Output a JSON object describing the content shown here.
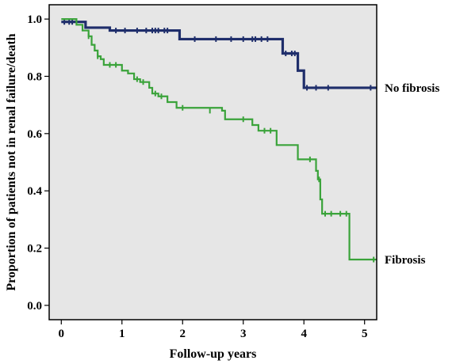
{
  "chart_data": {
    "type": "line",
    "subtype": "kaplan-meier step",
    "title": "",
    "xlabel": "Follow-up years",
    "ylabel": "Proportion of patients not in renal failure/death",
    "xlim": [
      -0.2,
      5.2
    ],
    "ylim": [
      -0.05,
      1.05
    ],
    "xticks": [
      0,
      1,
      2,
      3,
      4,
      5
    ],
    "yticks": [
      0.0,
      0.2,
      0.4,
      0.6,
      0.8,
      1.0
    ],
    "ytick_labels": [
      "0.0",
      "0.2",
      "0.4",
      "0.6",
      "0.8",
      "1.0"
    ],
    "background": "#e6e6e6",
    "grid": false,
    "series": [
      {
        "name": "No fibrosis",
        "color": "#1f2e6b",
        "steps": [
          [
            0,
            0.99
          ],
          [
            0.3,
            0.99
          ],
          [
            0.4,
            0.97
          ],
          [
            0.8,
            0.96
          ],
          [
            1.95,
            0.93
          ],
          [
            3.65,
            0.88
          ],
          [
            3.9,
            0.82
          ],
          [
            4.0,
            0.76
          ],
          [
            5.2,
            0.76
          ]
        ],
        "censored": [
          [
            0.05,
            0.99
          ],
          [
            0.13,
            0.99
          ],
          [
            0.18,
            0.99
          ],
          [
            0.9,
            0.96
          ],
          [
            1.05,
            0.96
          ],
          [
            1.25,
            0.96
          ],
          [
            1.4,
            0.96
          ],
          [
            1.5,
            0.96
          ],
          [
            1.55,
            0.96
          ],
          [
            1.6,
            0.96
          ],
          [
            1.7,
            0.96
          ],
          [
            1.75,
            0.96
          ],
          [
            2.2,
            0.93
          ],
          [
            2.55,
            0.93
          ],
          [
            2.8,
            0.93
          ],
          [
            3.0,
            0.93
          ],
          [
            3.15,
            0.93
          ],
          [
            3.2,
            0.93
          ],
          [
            3.3,
            0.93
          ],
          [
            3.4,
            0.93
          ],
          [
            3.7,
            0.88
          ],
          [
            3.8,
            0.88
          ],
          [
            3.85,
            0.88
          ],
          [
            4.05,
            0.76
          ],
          [
            4.2,
            0.76
          ],
          [
            4.4,
            0.76
          ],
          [
            5.1,
            0.76
          ]
        ]
      },
      {
        "name": "Fibrosis",
        "color": "#3aa33a",
        "steps": [
          [
            0,
            1.0
          ],
          [
            0.25,
            0.98
          ],
          [
            0.35,
            0.96
          ],
          [
            0.45,
            0.94
          ],
          [
            0.5,
            0.91
          ],
          [
            0.55,
            0.89
          ],
          [
            0.6,
            0.87
          ],
          [
            0.65,
            0.86
          ],
          [
            0.7,
            0.84
          ],
          [
            1.0,
            0.82
          ],
          [
            1.1,
            0.81
          ],
          [
            1.2,
            0.79
          ],
          [
            1.3,
            0.78
          ],
          [
            1.45,
            0.76
          ],
          [
            1.5,
            0.74
          ],
          [
            1.6,
            0.73
          ],
          [
            1.75,
            0.71
          ],
          [
            1.9,
            0.69
          ],
          [
            2.65,
            0.68
          ],
          [
            2.7,
            0.65
          ],
          [
            3.15,
            0.63
          ],
          [
            3.25,
            0.61
          ],
          [
            3.55,
            0.56
          ],
          [
            3.9,
            0.51
          ],
          [
            4.2,
            0.47
          ],
          [
            4.23,
            0.44
          ],
          [
            4.27,
            0.37
          ],
          [
            4.3,
            0.32
          ],
          [
            4.75,
            0.16
          ],
          [
            5.2,
            0.16
          ]
        ],
        "censored": [
          [
            0.45,
            0.94
          ],
          [
            0.6,
            0.87
          ],
          [
            0.8,
            0.84
          ],
          [
            0.9,
            0.84
          ],
          [
            1.25,
            0.79
          ],
          [
            1.35,
            0.78
          ],
          [
            1.55,
            0.74
          ],
          [
            1.65,
            0.73
          ],
          [
            2.0,
            0.69
          ],
          [
            2.45,
            0.68
          ],
          [
            3.0,
            0.65
          ],
          [
            3.35,
            0.61
          ],
          [
            3.45,
            0.61
          ],
          [
            4.1,
            0.51
          ],
          [
            4.25,
            0.44
          ],
          [
            4.35,
            0.32
          ],
          [
            4.45,
            0.32
          ],
          [
            4.6,
            0.32
          ],
          [
            4.7,
            0.32
          ],
          [
            5.15,
            0.16
          ]
        ]
      }
    ]
  }
}
